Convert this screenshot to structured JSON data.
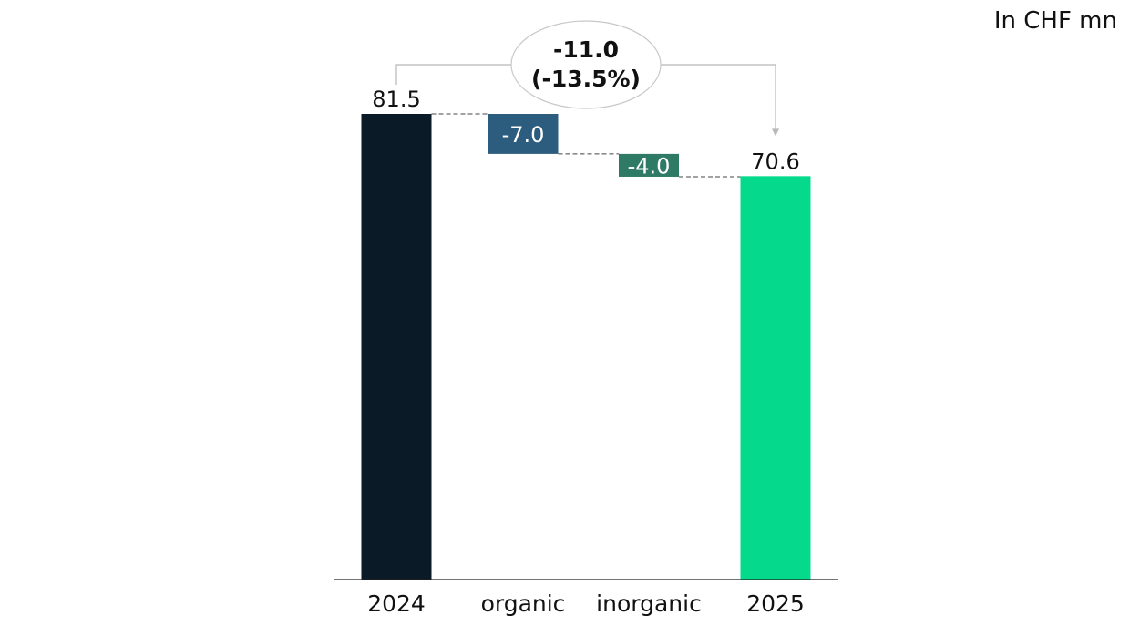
{
  "unit_label": "In CHF mn",
  "chart_data": {
    "type": "bar",
    "subtype": "waterfall",
    "categories": [
      "2024",
      "organic",
      "inorganic",
      "2025"
    ],
    "values": [
      81.5,
      -7.0,
      -4.0,
      70.6
    ],
    "value_labels": [
      "81.5",
      "-7.0",
      "-4.0",
      "70.6"
    ],
    "kinds": [
      "total",
      "delta",
      "delta",
      "total"
    ],
    "colors": [
      "#0a1a26",
      "#2c5c7e",
      "#2f7a64",
      "#05d98c"
    ],
    "change_annotation": {
      "value": "-11.0",
      "percent": "(-13.5%)",
      "from": "2024",
      "to": "2025"
    },
    "title": "",
    "xlabel": "",
    "ylabel": "",
    "ylim": [
      0,
      81.5
    ],
    "grid": false,
    "legend": "none"
  }
}
